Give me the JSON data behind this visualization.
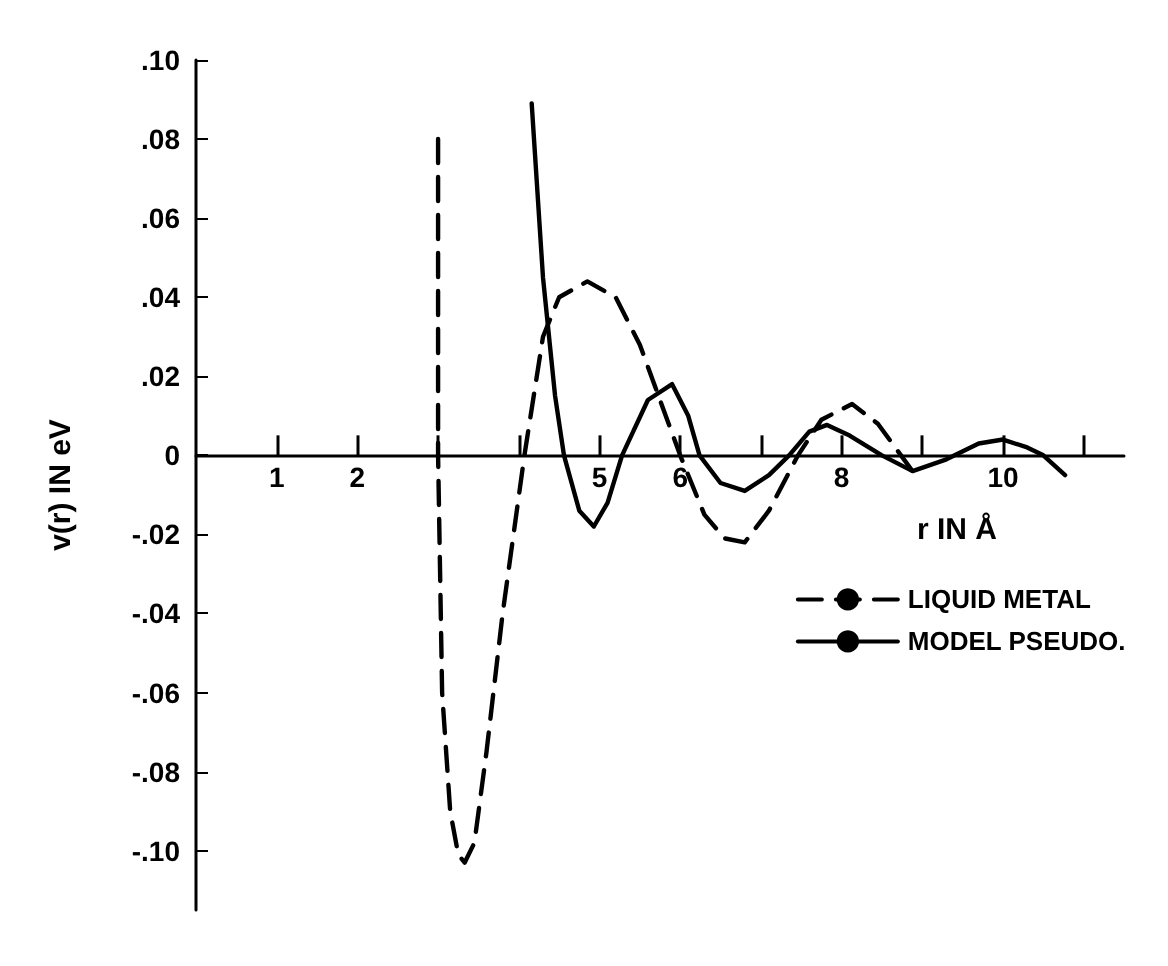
{
  "chart_data": {
    "type": "line",
    "xlabel": "r IN Å",
    "ylabel": "v(r) IN eV",
    "xlim": [
      0,
      11.5
    ],
    "ylim": [
      -0.115,
      0.1
    ],
    "xticks": [
      1,
      2,
      {
        "value": 3,
        "label": null
      },
      {
        "value": 4,
        "label": null
      },
      5,
      6,
      {
        "value": 7,
        "label": null
      },
      8,
      {
        "value": 9,
        "label": null
      },
      10,
      {
        "value": 11,
        "label": null
      }
    ],
    "yticks": [
      {
        "value": -0.1,
        "label": "-.10"
      },
      {
        "value": -0.08,
        "label": "-.08"
      },
      {
        "value": -0.06,
        "label": "-.06"
      },
      {
        "value": -0.04,
        "label": "-.04"
      },
      {
        "value": -0.02,
        "label": "-.02"
      },
      0,
      {
        "value": 0.02,
        "label": ".02"
      },
      {
        "value": 0.04,
        "label": ".04"
      },
      {
        "value": 0.06,
        "label": ".06"
      },
      {
        "value": 0.08,
        "label": ".08"
      },
      {
        "value": 0.1,
        "label": ".10"
      }
    ],
    "grid": false,
    "legend": "right",
    "marker": "none",
    "series": [
      {
        "name": "LIQUID METAL",
        "color": "#000000",
        "line_style": "dashed",
        "x": [
          3.0,
          3.0,
          3.05,
          3.15,
          3.25,
          3.33,
          3.45,
          3.6,
          3.8,
          4.07,
          4.3,
          4.5,
          4.85,
          5.2,
          5.5,
          5.75,
          6.0,
          6.3,
          6.55,
          6.8,
          7.1,
          7.46,
          7.75,
          8.13,
          8.45,
          8.7,
          8.88
        ],
        "values": [
          0.08,
          0.0,
          -0.06,
          -0.09,
          -0.101,
          -0.103,
          -0.098,
          -0.075,
          -0.04,
          0.0,
          0.03,
          0.04,
          0.044,
          0.04,
          0.028,
          0.014,
          0.0,
          -0.015,
          -0.021,
          -0.022,
          -0.014,
          0.0,
          0.009,
          0.013,
          0.008,
          0.001,
          -0.004
        ]
      },
      {
        "name": "MODEL PSEUDO.",
        "color": "#000000",
        "line_style": "solid",
        "x": [
          4.16,
          4.3,
          4.45,
          4.56,
          4.75,
          4.93,
          5.1,
          5.28,
          5.6,
          5.9,
          6.1,
          6.24,
          6.5,
          6.8,
          7.1,
          7.35,
          7.6,
          7.82,
          8.1,
          8.5,
          8.88,
          9.3,
          9.7,
          10.0,
          10.3,
          10.5,
          10.77
        ],
        "values": [
          0.089,
          0.045,
          0.015,
          0.0,
          -0.014,
          -0.018,
          -0.012,
          0.0,
          0.014,
          0.018,
          0.01,
          0.0,
          -0.007,
          -0.009,
          -0.005,
          0.0,
          0.006,
          0.0077,
          0.005,
          0.0,
          -0.004,
          -0.001,
          0.003,
          0.004,
          0.002,
          0.0,
          -0.005
        ]
      }
    ]
  }
}
